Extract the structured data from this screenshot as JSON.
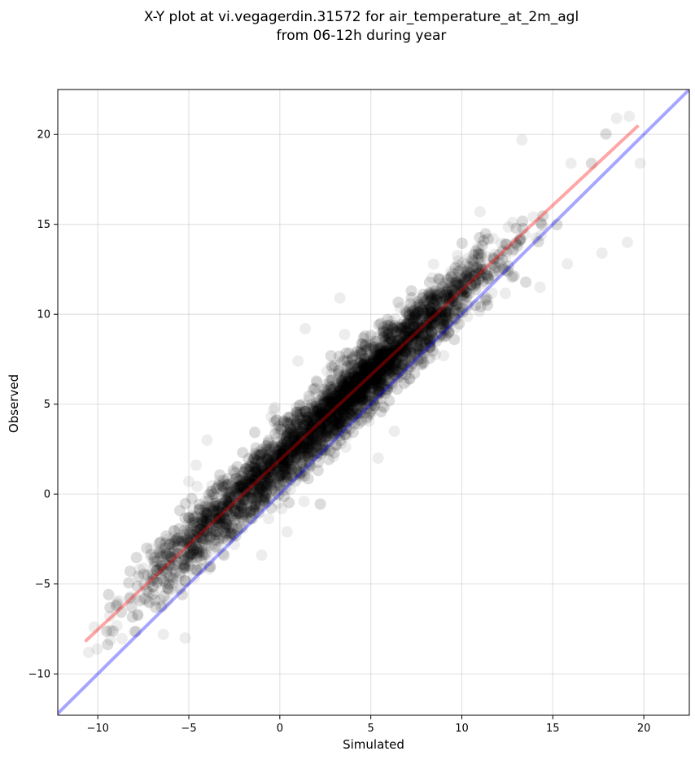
{
  "chart_data": {
    "type": "scatter",
    "title_line1": "X-Y plot at vi.vegagerdin.31572 for air_temperature_at_2m_agl",
    "title_line2": "from 06-12h during year",
    "xlabel": "Simulated",
    "ylabel": "Observed",
    "xlim": [
      -12.2,
      22.5
    ],
    "ylim": [
      -12.3,
      22.5
    ],
    "xticks": [
      -10,
      -5,
      0,
      5,
      10,
      15,
      20
    ],
    "yticks": [
      -10,
      -5,
      0,
      5,
      10,
      15,
      20
    ],
    "xtick_labels": [
      "−10",
      "−5",
      "0",
      "5",
      "10",
      "15",
      "20"
    ],
    "ytick_labels": [
      "−10",
      "−5",
      "0",
      "5",
      "10",
      "15",
      "20"
    ],
    "grid": true,
    "point_color": "#000000",
    "identity_line": {
      "color": "#0000ff",
      "from": [
        -12.2,
        -12.2
      ],
      "to": [
        22.5,
        22.5
      ]
    },
    "fit_line": {
      "color": "#ff0000",
      "from": [
        -10.7,
        -8.2
      ],
      "to": [
        19.7,
        20.5
      ]
    },
    "point_cloud": {
      "x_range": [
        -10.7,
        19.7
      ],
      "fit_slope": 0.944,
      "fit_intercept": 1.9,
      "n_points": 5500
    },
    "points_sample": [
      [
        -10.5,
        -8.8
      ],
      [
        -10.2,
        -7.4
      ],
      [
        -9.0,
        -6.2
      ],
      [
        -8.2,
        -5.7
      ],
      [
        -7.8,
        -6.7
      ],
      [
        -6.4,
        -7.8
      ],
      [
        -5.2,
        -8.0
      ],
      [
        -4.6,
        1.6
      ],
      [
        -4.0,
        3.0
      ],
      [
        -5.0,
        0.7
      ],
      [
        -2.5,
        -2.8
      ],
      [
        -1.0,
        -3.4
      ],
      [
        0.4,
        -2.1
      ],
      [
        1.4,
        9.2
      ],
      [
        1.0,
        7.4
      ],
      [
        3.3,
        10.9
      ],
      [
        5.4,
        2.0
      ],
      [
        6.3,
        3.5
      ],
      [
        9.0,
        7.7
      ],
      [
        11.0,
        15.7
      ],
      [
        13.3,
        19.7
      ],
      [
        14.3,
        11.5
      ],
      [
        15.8,
        12.8
      ],
      [
        17.7,
        13.4
      ],
      [
        18.5,
        20.9
      ],
      [
        19.2,
        21.0
      ],
      [
        19.8,
        18.4
      ],
      [
        19.1,
        14.0
      ],
      [
        16.0,
        18.4
      ],
      [
        12.8,
        15.1
      ]
    ]
  }
}
